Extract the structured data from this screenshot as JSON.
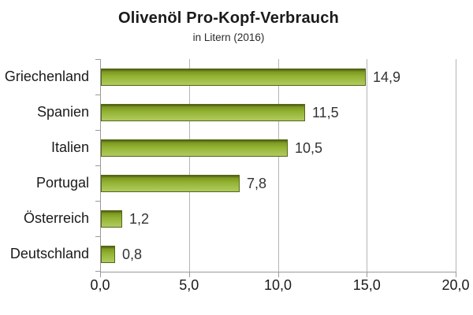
{
  "chart_data": {
    "type": "bar",
    "orientation": "horizontal",
    "title": "Olivenöl Pro-Kopf-Verbrauch",
    "subtitle": "in Litern (2016)",
    "categories": [
      "Griechenland",
      "Spanien",
      "Italien",
      "Portugal",
      "Österreich",
      "Deutschland"
    ],
    "values": [
      14.9,
      11.5,
      10.5,
      7.8,
      1.2,
      0.8
    ],
    "value_labels": [
      "14,9",
      "11,5",
      "10,5",
      "7,8",
      "1,2",
      "0,8"
    ],
    "xlabel": "",
    "ylabel": "",
    "xlim": [
      0,
      20
    ],
    "x_ticks": [
      0,
      5,
      10,
      15,
      20
    ],
    "x_tick_labels": [
      "0,0",
      "5,0",
      "10,0",
      "15,0",
      "20,0"
    ],
    "grid": true,
    "legend": null
  },
  "colors": {
    "background": "#ffffff",
    "bar_border": "#55661a",
    "bar_gradient_top": "#4d5c11",
    "bar_gradient_upper": "#7e9a22",
    "bar_gradient_mid": "#94b233",
    "bar_gradient_lower": "#a5c24e",
    "bar_gradient_bottom": "#b0ca5f",
    "gridline": "#b5b5b5",
    "axis": "#9a9a9a",
    "title_text": "#1a1a1a",
    "label_text": "#1a1a1a",
    "value_text": "#333333"
  }
}
